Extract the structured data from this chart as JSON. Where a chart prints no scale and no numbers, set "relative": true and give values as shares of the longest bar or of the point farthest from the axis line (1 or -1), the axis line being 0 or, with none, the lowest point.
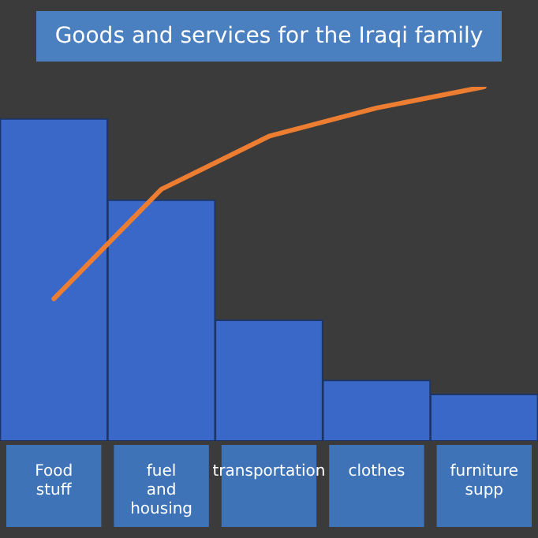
{
  "chart_data": {
    "type": "bar",
    "title": "Goods and services for the Iraqi family",
    "relative": true,
    "categories": [
      "Food stuff",
      "fuel and housing",
      "transportation",
      "clothes",
      "furniture supp"
    ],
    "series": [
      {
        "color": "#3a68c9",
        "values": [
          0.91,
          0.68,
          0.34,
          0.17,
          0.13
        ]
      },
      {
        "type": "line",
        "color": "#ed7d31",
        "values": [
          0.4,
          0.71,
          0.86,
          0.94,
          1.0
        ]
      }
    ]
  }
}
